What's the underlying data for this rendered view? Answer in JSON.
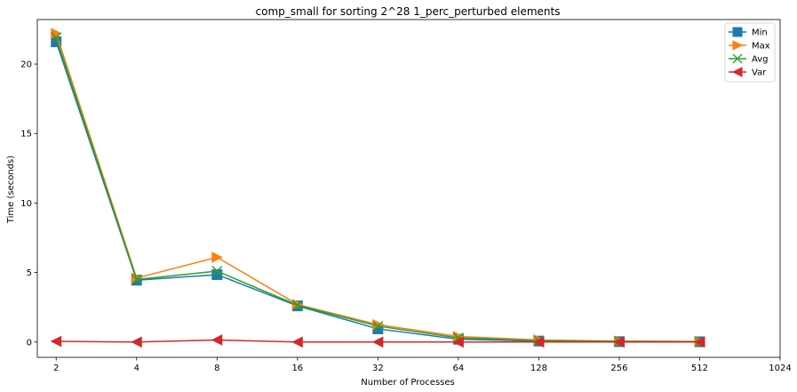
{
  "chart_data": {
    "type": "line",
    "title": "comp_small for sorting 2^28 1_perc_perturbed elements",
    "xlabel": "Number of Processes",
    "ylabel": "Time (seconds)",
    "x_scale": "log2",
    "x_ticks": [
      2,
      4,
      8,
      16,
      32,
      64,
      128,
      256,
      512,
      1024
    ],
    "x_tick_labels": [
      "2",
      "4",
      "8",
      "16",
      "32",
      "64",
      "128",
      "256",
      "512",
      "1024"
    ],
    "y_ticks": [
      0,
      5,
      10,
      15,
      20
    ],
    "y_tick_labels": [
      "0",
      "5",
      "10",
      "15",
      "20"
    ],
    "xlim": [
      1.7,
      1024
    ],
    "ylim": [
      -1.1,
      23.2
    ],
    "legend_position": "top-right",
    "x": [
      2,
      4,
      8,
      16,
      32,
      64,
      128,
      256,
      512
    ],
    "series": [
      {
        "name": "Min",
        "color": "#1f77b4",
        "marker": "square",
        "values": [
          21.6,
          4.45,
          4.85,
          2.6,
          0.95,
          0.2,
          0.07,
          0.03,
          0.02
        ]
      },
      {
        "name": "Max",
        "color": "#ff7f0e",
        "marker": "triangle-right",
        "values": [
          22.2,
          4.6,
          6.1,
          2.7,
          1.25,
          0.4,
          0.15,
          0.07,
          0.04
        ]
      },
      {
        "name": "Avg",
        "color": "#2ca02c",
        "marker": "x",
        "values": [
          21.9,
          4.5,
          5.1,
          2.65,
          1.15,
          0.3,
          0.1,
          0.05,
          0.03
        ]
      },
      {
        "name": "Var",
        "color": "#d62728",
        "marker": "triangle-left",
        "values": [
          0.05,
          0.0,
          0.15,
          0.0,
          0.0,
          0.0,
          0.0,
          0.0,
          0.0
        ]
      }
    ]
  }
}
